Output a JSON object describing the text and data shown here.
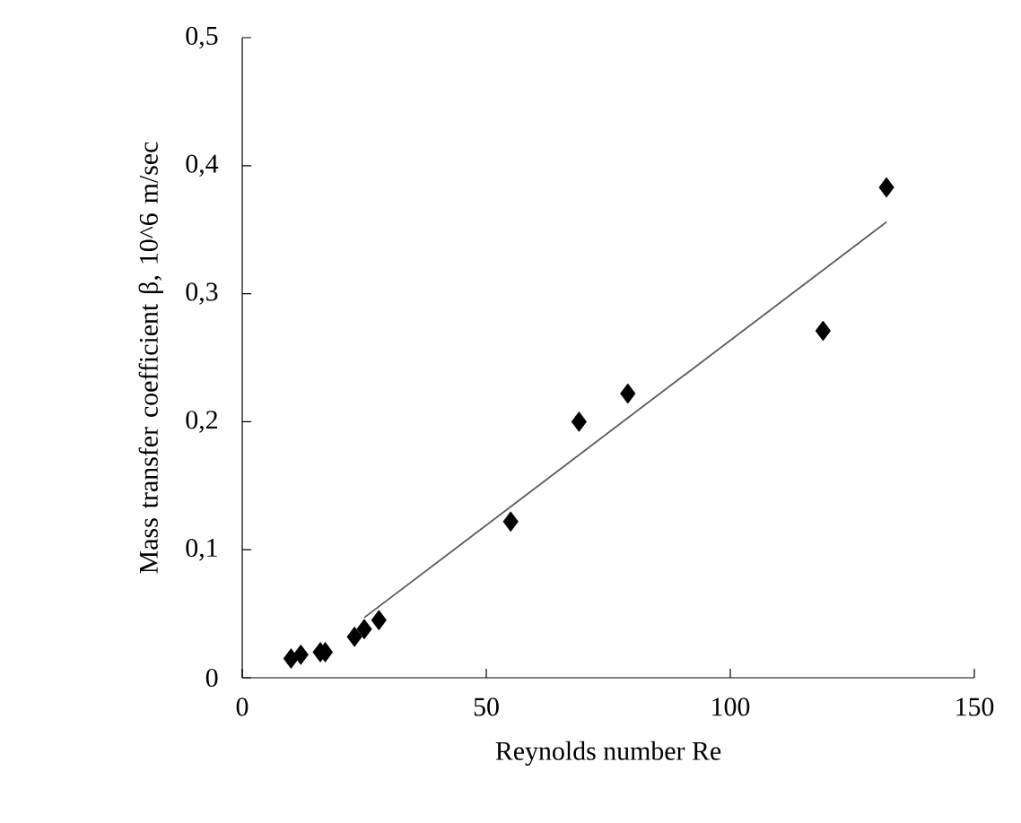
{
  "chart_data": {
    "type": "scatter",
    "xlabel": "Reynolds number Re",
    "ylabel": "Mass transfer coefficient β, 10^6 m/sec",
    "xlim": [
      0,
      150
    ],
    "ylim": [
      0,
      0.5
    ],
    "xticks": [
      0,
      50,
      100,
      150
    ],
    "yticks": [
      {
        "value": 0,
        "label": "0"
      },
      {
        "value": 0.1,
        "label": "0,1"
      },
      {
        "value": 0.2,
        "label": "0,2"
      },
      {
        "value": 0.3,
        "label": "0,3"
      },
      {
        "value": 0.4,
        "label": "0,4"
      },
      {
        "value": 0.5,
        "label": "0,5"
      }
    ],
    "series": [
      {
        "marker": "diamond",
        "color": "#000000",
        "x": [
          10,
          12,
          16,
          17,
          23,
          25,
          28,
          55,
          69,
          79,
          119,
          132
        ],
        "values": [
          0.015,
          0.018,
          0.02,
          0.02,
          0.032,
          0.038,
          0.045,
          0.122,
          0.2,
          0.222,
          0.271,
          0.383
        ]
      },
      {
        "type": "line",
        "marker": "none",
        "color": "#595959",
        "x": [
          25,
          132
        ],
        "values": [
          0.047,
          0.356
        ]
      }
    ]
  }
}
